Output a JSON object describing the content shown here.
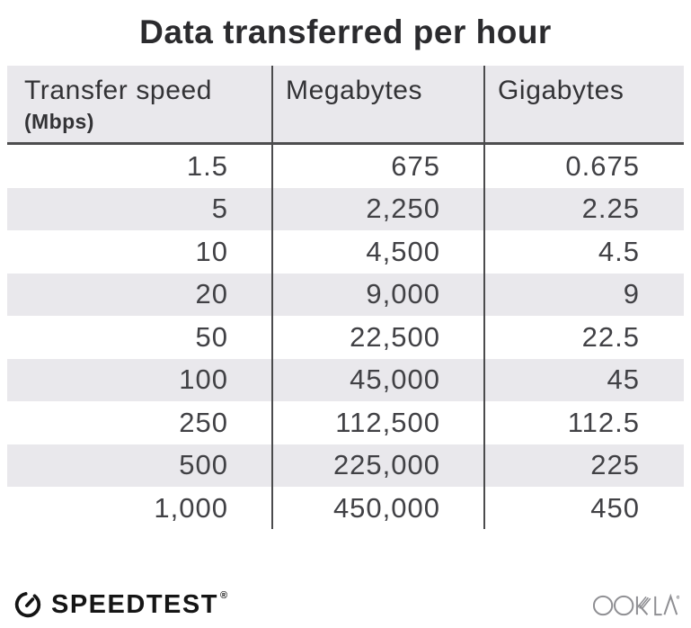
{
  "title": "Data transferred per hour",
  "table": {
    "columns": [
      {
        "label": "Transfer speed",
        "sublabel": "(Mbps)"
      },
      {
        "label": "Megabytes",
        "sublabel": ""
      },
      {
        "label": "Gigabytes",
        "sublabel": ""
      }
    ],
    "rows": [
      [
        "1.5",
        "675",
        "0.675"
      ],
      [
        "5",
        "2,250",
        "2.25"
      ],
      [
        "10",
        "4,500",
        "4.5"
      ],
      [
        "20",
        "9,000",
        "9"
      ],
      [
        "50",
        "22,500",
        "22.5"
      ],
      [
        "100",
        "45,000",
        "45"
      ],
      [
        "250",
        "112,500",
        "112.5"
      ],
      [
        "500",
        "225,000",
        "225"
      ],
      [
        "1,000",
        "450,000",
        "450"
      ]
    ]
  },
  "chart_data": {
    "type": "table",
    "title": "Data transferred per hour",
    "columns": [
      "Transfer speed (Mbps)",
      "Megabytes",
      "Gigabytes"
    ],
    "rows": [
      [
        1.5,
        675,
        0.675
      ],
      [
        5,
        2250,
        2.25
      ],
      [
        10,
        4500,
        4.5
      ],
      [
        20,
        9000,
        9
      ],
      [
        50,
        22500,
        22.5
      ],
      [
        100,
        45000,
        45
      ],
      [
        250,
        112500,
        112.5
      ],
      [
        500,
        225000,
        225
      ],
      [
        1000,
        450000,
        450
      ]
    ],
    "layout": {
      "zebra_striping": true,
      "first_row_background": "white",
      "column_alignment": "right"
    }
  },
  "footer": {
    "speedtest_label": "SPEEDTEST",
    "registered_mark": "®",
    "ookla_label": "OOKLA",
    "ookla_trademark": "™"
  },
  "colors": {
    "header_bg": "#e9e8ec",
    "stripe_bg": "#e9e8ec",
    "column_divider": "#4b4b4d",
    "header_underline": "#4d4d4f",
    "title_text": "#2b2b2e",
    "body_text": "#414145",
    "speedtest_black": "#151515",
    "ookla_gray": "#8f8f93"
  }
}
